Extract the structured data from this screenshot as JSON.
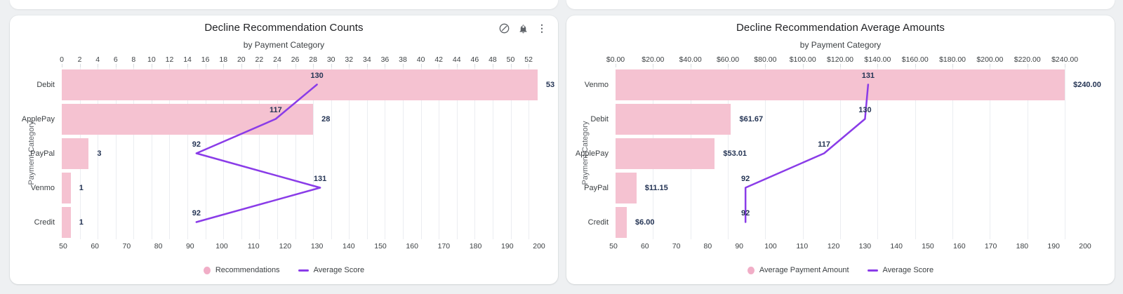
{
  "page": {
    "background_color": "#eef0f2",
    "card_color": "#ffffff"
  },
  "colors": {
    "bar": "#f5c2d1",
    "line": "#8a3ce8",
    "value_label": "#243454",
    "tick_label": "#3c4043",
    "gridline": "#ebedf1"
  },
  "toolbar": {
    "icons": [
      {
        "name": "edit-chart-icon"
      },
      {
        "name": "add-alert-icon"
      },
      {
        "name": "more-options-icon"
      }
    ]
  },
  "chart_data": [
    {
      "type": "bar",
      "orientation": "horizontal",
      "title": "Decline Recommendation Counts",
      "subtitle": "by Payment Category",
      "y_axis_title": "Payment Category",
      "categories": [
        "Debit",
        "ApplePay",
        "PayPal",
        "Venmo",
        "Credit"
      ],
      "series": [
        {
          "name": "Recommendations",
          "type": "bar",
          "axis": "top",
          "values": [
            53,
            28,
            3,
            1,
            1
          ],
          "labels": [
            "53",
            "28",
            "3",
            "1",
            "1"
          ]
        },
        {
          "name": "Average Score",
          "type": "line",
          "axis": "bottom",
          "values": [
            130,
            117,
            92,
            131,
            92
          ],
          "labels": [
            "130",
            "117",
            "92",
            "131",
            "92"
          ]
        }
      ],
      "top_axis": {
        "tick_labels": [
          "0",
          "2",
          "4",
          "6",
          "8",
          "10",
          "12",
          "14",
          "16",
          "18",
          "20",
          "22",
          "24",
          "26",
          "28",
          "30",
          "32",
          "34",
          "36",
          "38",
          "40",
          "42",
          "44",
          "46",
          "48",
          "50",
          "52"
        ],
        "tick_values": [
          0,
          2,
          4,
          6,
          8,
          10,
          12,
          14,
          16,
          18,
          20,
          22,
          24,
          26,
          28,
          30,
          32,
          34,
          36,
          38,
          40,
          42,
          44,
          46,
          48,
          50,
          52
        ],
        "min": 0,
        "max": 53
      },
      "bottom_axis": {
        "tick_labels": [
          "50",
          "60",
          "70",
          "80",
          "90",
          "100",
          "110",
          "120",
          "130",
          "140",
          "150",
          "160",
          "170",
          "180",
          "190",
          "200"
        ],
        "tick_values": [
          50,
          60,
          70,
          80,
          90,
          100,
          110,
          120,
          130,
          140,
          150,
          160,
          170,
          180,
          190,
          200
        ],
        "min": 50,
        "max": 200
      },
      "legend": [
        "Recommendations",
        "Average Score"
      ],
      "grid": true,
      "legend_position": "bottom-center"
    },
    {
      "type": "bar",
      "orientation": "horizontal",
      "title": "Decline Recommendation Average Amounts",
      "subtitle": "by Payment Category",
      "y_axis_title": "Payment Category",
      "categories": [
        "Venmo",
        "Debit",
        "ApplePay",
        "PayPal",
        "Credit"
      ],
      "series": [
        {
          "name": "Average Payment Amount",
          "type": "bar",
          "axis": "top",
          "values": [
            240.0,
            61.67,
            53.01,
            11.15,
            6.0
          ],
          "labels": [
            "$240.00",
            "$61.67",
            "$53.01",
            "$11.15",
            "$6.00"
          ]
        },
        {
          "name": "Average Score",
          "type": "line",
          "axis": "bottom",
          "values": [
            131,
            130,
            117,
            92,
            92
          ],
          "labels": [
            "131",
            "130",
            "117",
            "92",
            "92"
          ]
        }
      ],
      "top_axis": {
        "tick_labels": [
          "$0.00",
          "$20.00",
          "$40.00",
          "$60.00",
          "$80.00",
          "$100.00",
          "$120.00",
          "$140.00",
          "$160.00",
          "$180.00",
          "$200.00",
          "$220.00",
          "$240.00"
        ],
        "tick_values": [
          0,
          20,
          40,
          60,
          80,
          100,
          120,
          140,
          160,
          180,
          200,
          220,
          240
        ],
        "min": 0,
        "max": 240
      },
      "bottom_axis": {
        "tick_labels": [
          "50",
          "60",
          "70",
          "80",
          "90",
          "100",
          "110",
          "120",
          "130",
          "140",
          "150",
          "160",
          "170",
          "180",
          "190",
          "200"
        ],
        "tick_values": [
          50,
          60,
          70,
          80,
          90,
          100,
          110,
          120,
          130,
          140,
          150,
          160,
          170,
          180,
          190,
          200
        ],
        "min": 50,
        "max": 200
      },
      "legend": [
        "Average Payment Amount",
        "Average Score"
      ],
      "grid": true,
      "legend_position": "bottom-center"
    }
  ]
}
